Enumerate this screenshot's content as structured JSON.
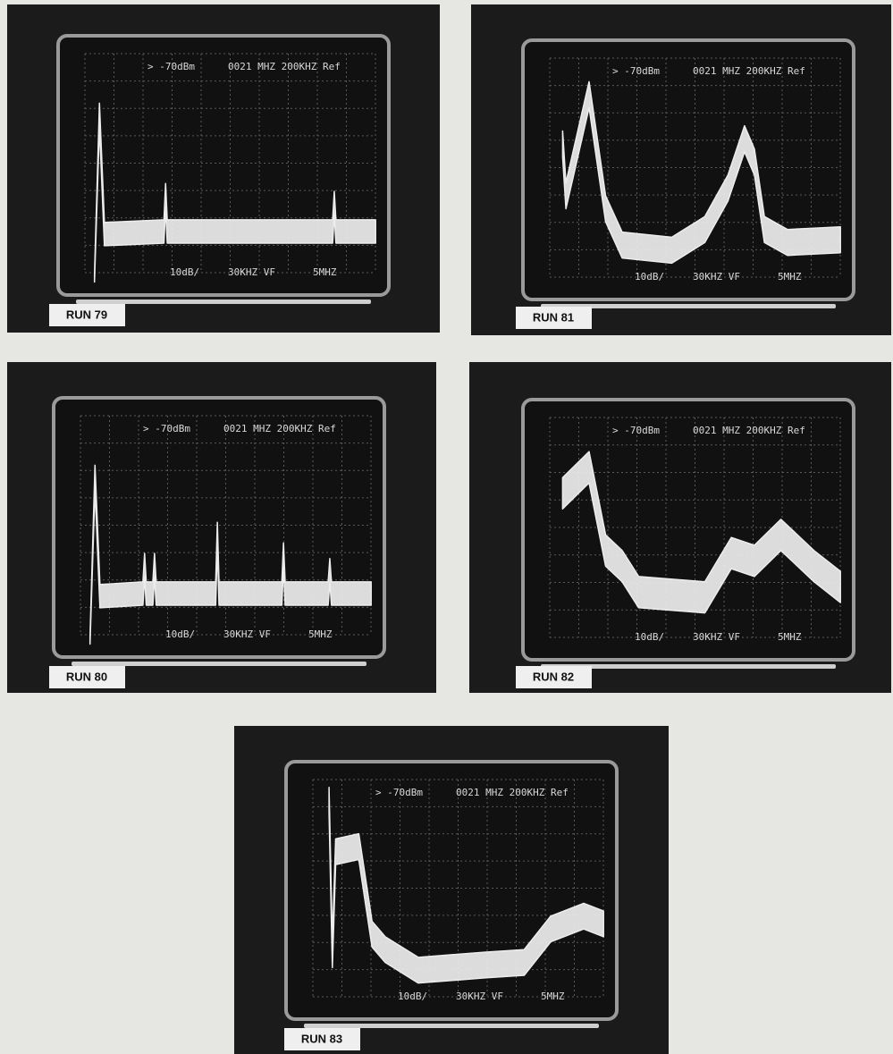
{
  "panels": [
    {
      "label": "RUN 79",
      "readout_top": [
        "> -70dBm",
        "0021 MHZ 200KHZ Ref"
      ],
      "readout_bottom": [
        "10dB/",
        "30KHZ VF",
        "5MHZ"
      ]
    },
    {
      "label": "RUN 81",
      "readout_top": [
        "> -70dBm",
        "0021 MHZ 200KHZ Ref"
      ],
      "readout_bottom": [
        "10dB/",
        "30KHZ VF",
        "5MHZ"
      ]
    },
    {
      "label": "RUN 80",
      "readout_top": [
        "> -70dBm",
        "0021 MHZ 200KHZ Ref"
      ],
      "readout_bottom": [
        "10dB/",
        "30KHZ VF",
        "5MHZ"
      ]
    },
    {
      "label": "RUN 82",
      "readout_top": [
        "> -70dBm",
        "0021 MHZ 200KHZ Ref"
      ],
      "readout_bottom": [
        "10dB/",
        "30KHZ VF",
        "5MHZ"
      ]
    },
    {
      "label": "RUN 83",
      "readout_top": [
        "> -70dBm",
        "0021 MHZ 200KHZ Ref"
      ],
      "readout_bottom": [
        "10dB/",
        "30KHZ VF",
        "5MHZ"
      ]
    }
  ]
}
